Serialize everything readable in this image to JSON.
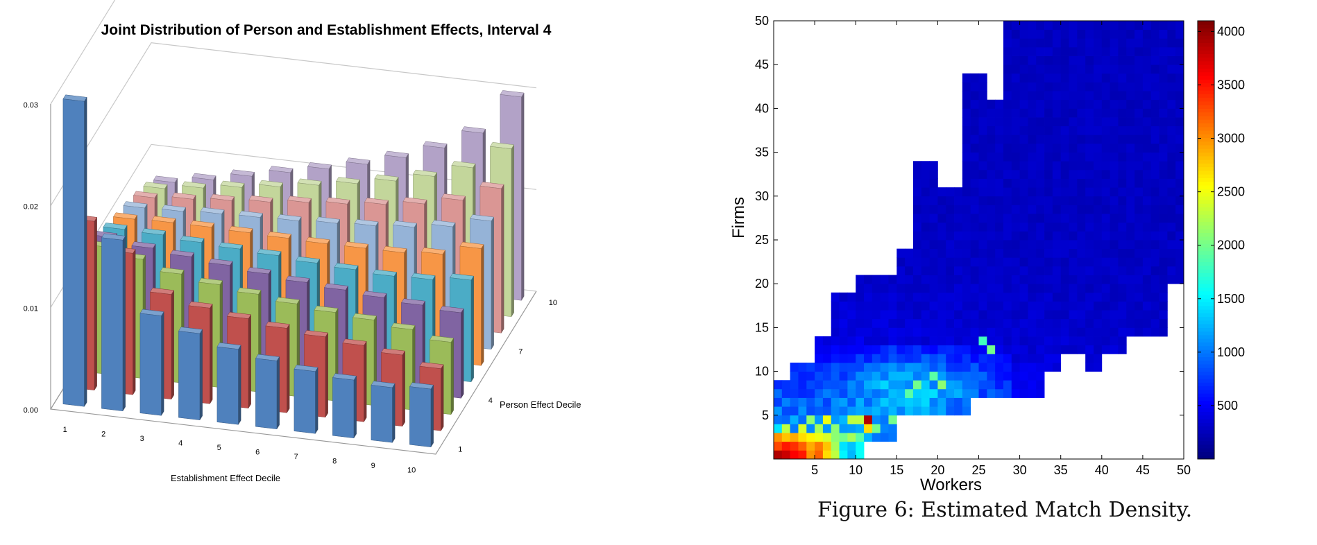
{
  "chart_data": [
    {
      "type": "bar",
      "title": "Joint Distribution of Person and Establishment Effects, Interval 4",
      "xlabel": "Establishment Effect Decile",
      "ylabel": "Person Effect Decile",
      "zlim": [
        0,
        0.03
      ],
      "z_ticks": [
        "0.00",
        "0.01",
        "0.02",
        "0.03"
      ],
      "x_ticks": [
        "1",
        "2",
        "3",
        "4",
        "5",
        "6",
        "7",
        "8",
        "9",
        "10"
      ],
      "y_ticks": [
        "1",
        "4",
        "7",
        "10"
      ],
      "categories": [
        "1",
        "2",
        "3",
        "4",
        "5",
        "6",
        "7",
        "8",
        "9",
        "10"
      ],
      "series": [
        {
          "color": "#4f81bd",
          "values": [
            0.03,
            0.0168,
            0.0098,
            0.0085,
            0.0074,
            0.0067,
            0.0061,
            0.0057,
            0.0054,
            0.0057
          ]
        },
        {
          "color": "#c0504d",
          "values": [
            0.0166,
            0.0139,
            0.0103,
            0.0094,
            0.0088,
            0.0083,
            0.0079,
            0.0075,
            0.007,
            0.0061
          ]
        },
        {
          "color": "#9bbb59",
          "values": [
            0.0125,
            0.0117,
            0.0107,
            0.0101,
            0.0096,
            0.0091,
            0.0087,
            0.0084,
            0.0079,
            0.0071
          ]
        },
        {
          "color": "#8064a2",
          "values": [
            0.0118,
            0.0112,
            0.0108,
            0.0104,
            0.01,
            0.0096,
            0.0093,
            0.009,
            0.0087,
            0.0084
          ]
        },
        {
          "color": "#4bacc6",
          "values": [
            0.011,
            0.0109,
            0.0106,
            0.0104,
            0.0102,
            0.0099,
            0.0097,
            0.0095,
            0.0096,
            0.01
          ]
        },
        {
          "color": "#f79646",
          "values": [
            0.0104,
            0.0105,
            0.0105,
            0.0104,
            0.0103,
            0.0102,
            0.0102,
            0.0102,
            0.0105,
            0.0115
          ]
        },
        {
          "color": "#95b3d7",
          "values": [
            0.0099,
            0.01,
            0.0102,
            0.0103,
            0.0104,
            0.0106,
            0.0108,
            0.0111,
            0.0116,
            0.0126
          ]
        },
        {
          "color": "#da9694",
          "values": [
            0.0093,
            0.0096,
            0.0099,
            0.0102,
            0.0106,
            0.0109,
            0.0113,
            0.0118,
            0.0126,
            0.0142
          ]
        },
        {
          "color": "#c3d69b",
          "values": [
            0.0086,
            0.0091,
            0.0096,
            0.0101,
            0.0107,
            0.0113,
            0.012,
            0.0129,
            0.0142,
            0.0165
          ]
        },
        {
          "color": "#b2a2c7",
          "values": [
            0.0076,
            0.0083,
            0.0091,
            0.0099,
            0.0107,
            0.0116,
            0.0127,
            0.0141,
            0.016,
            0.02
          ]
        }
      ]
    },
    {
      "type": "heatmap",
      "xlabel": "Workers",
      "ylabel": "Firms",
      "xlim": [
        0,
        50
      ],
      "ylim": [
        0,
        50
      ],
      "x_ticks": [
        5,
        10,
        15,
        20,
        25,
        30,
        35,
        40,
        45,
        50
      ],
      "y_ticks": [
        5,
        10,
        15,
        20,
        25,
        30,
        35,
        40,
        45,
        50
      ],
      "colorbar_ticks": [
        500,
        1000,
        1500,
        2000,
        2500,
        3000,
        3500,
        4000
      ],
      "colorbar_range": [
        0,
        4100
      ],
      "colormap": "jet",
      "support_max_firm_by_worker_column": [
        9,
        9,
        11,
        11,
        11,
        14,
        14,
        19,
        19,
        19,
        21,
        21,
        21,
        21,
        21,
        24,
        24,
        34,
        34,
        34,
        31,
        31,
        31,
        44,
        44,
        44,
        41,
        41,
        50,
        50,
        50,
        50,
        50,
        50,
        50,
        50,
        50,
        50,
        50,
        50,
        50,
        50,
        50,
        50,
        50,
        50,
        50,
        50,
        50,
        50
      ],
      "support_min_firm_by_worker_column": [
        1,
        1,
        1,
        1,
        1,
        1,
        1,
        1,
        1,
        1,
        1,
        3,
        3,
        3,
        3,
        6,
        6,
        6,
        6,
        6,
        6,
        6,
        6,
        6,
        8,
        8,
        8,
        8,
        8,
        8,
        8,
        8,
        8,
        11,
        11,
        13,
        13,
        13,
        11,
        11,
        13,
        13,
        13,
        15,
        15,
        15,
        15,
        15,
        21,
        21
      ],
      "hot_cells": [
        {
          "x": 1,
          "y": 1,
          "value": 3900
        },
        {
          "x": 2,
          "y": 1,
          "value": 3800
        },
        {
          "x": 3,
          "y": 1,
          "value": 3600
        },
        {
          "x": 4,
          "y": 1,
          "value": 3500
        },
        {
          "x": 5,
          "y": 1,
          "value": 3000
        },
        {
          "x": 6,
          "y": 1,
          "value": 3200
        },
        {
          "x": 7,
          "y": 1,
          "value": 2700
        },
        {
          "x": 8,
          "y": 1,
          "value": 2300
        },
        {
          "x": 9,
          "y": 1,
          "value": 1500
        },
        {
          "x": 1,
          "y": 2,
          "value": 3300
        },
        {
          "x": 2,
          "y": 2,
          "value": 3500
        },
        {
          "x": 3,
          "y": 2,
          "value": 3400
        },
        {
          "x": 4,
          "y": 2,
          "value": 3200
        },
        {
          "x": 5,
          "y": 2,
          "value": 2900
        },
        {
          "x": 6,
          "y": 2,
          "value": 3100
        },
        {
          "x": 7,
          "y": 2,
          "value": 2800
        },
        {
          "x": 8,
          "y": 2,
          "value": 2200
        },
        {
          "x": 1,
          "y": 3,
          "value": 3000
        },
        {
          "x": 2,
          "y": 3,
          "value": 2800
        },
        {
          "x": 3,
          "y": 3,
          "value": 2900
        },
        {
          "x": 4,
          "y": 3,
          "value": 2700
        },
        {
          "x": 5,
          "y": 3,
          "value": 2600
        },
        {
          "x": 6,
          "y": 3,
          "value": 2500
        },
        {
          "x": 7,
          "y": 3,
          "value": 2400
        },
        {
          "x": 8,
          "y": 3,
          "value": 2100
        },
        {
          "x": 9,
          "y": 3,
          "value": 2000
        },
        {
          "x": 10,
          "y": 3,
          "value": 2200
        },
        {
          "x": 11,
          "y": 3,
          "value": 1900
        },
        {
          "x": 2,
          "y": 4,
          "value": 2300
        },
        {
          "x": 4,
          "y": 4,
          "value": 2400
        },
        {
          "x": 6,
          "y": 4,
          "value": 2200
        },
        {
          "x": 8,
          "y": 4,
          "value": 2100
        },
        {
          "x": 12,
          "y": 4,
          "value": 2700
        },
        {
          "x": 13,
          "y": 4,
          "value": 2000
        },
        {
          "x": 5,
          "y": 5,
          "value": 2100
        },
        {
          "x": 7,
          "y": 5,
          "value": 2500
        },
        {
          "x": 10,
          "y": 5,
          "value": 2300
        },
        {
          "x": 11,
          "y": 5,
          "value": 2300
        },
        {
          "x": 12,
          "y": 5,
          "value": 3900
        },
        {
          "x": 15,
          "y": 5,
          "value": 2000
        },
        {
          "x": 17,
          "y": 8,
          "value": 1900
        },
        {
          "x": 18,
          "y": 9,
          "value": 2000
        },
        {
          "x": 20,
          "y": 10,
          "value": 1900
        },
        {
          "x": 21,
          "y": 9,
          "value": 2100
        },
        {
          "x": 27,
          "y": 13,
          "value": 2000
        },
        {
          "x": 26,
          "y": 14,
          "value": 1800
        }
      ]
    }
  ],
  "caption": "Figure 6: Estimated Match Density."
}
